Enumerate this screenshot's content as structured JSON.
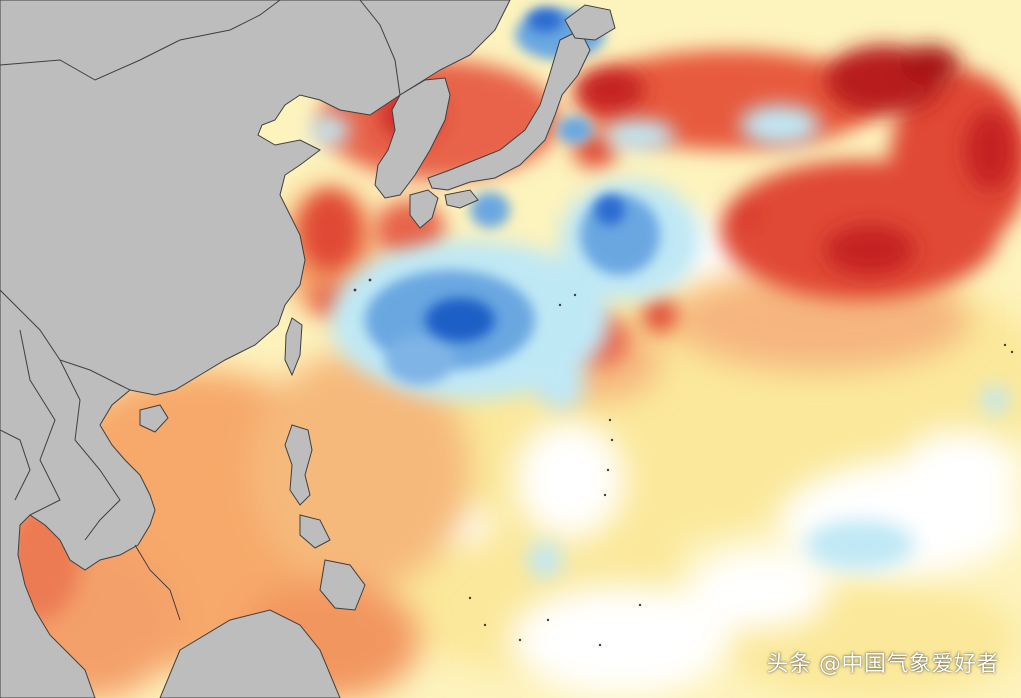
{
  "map": {
    "subject": "sea-surface-temperature-anomaly",
    "colors": {
      "land": "#bdbdbd",
      "border": "#3f3f3f",
      "neutral": "#ffffff",
      "warm_light": "#fbe89a",
      "warm_medium": "#f6a96a",
      "warm_strong": "#e75a3e",
      "warm_extreme": "#bd1f1f",
      "cool_light": "#bfe8f5",
      "cool_medium": "#6aa7e1",
      "cool_strong": "#1f5fc6"
    }
  },
  "watermark": {
    "text": "头条 @中国气象爱好者"
  }
}
